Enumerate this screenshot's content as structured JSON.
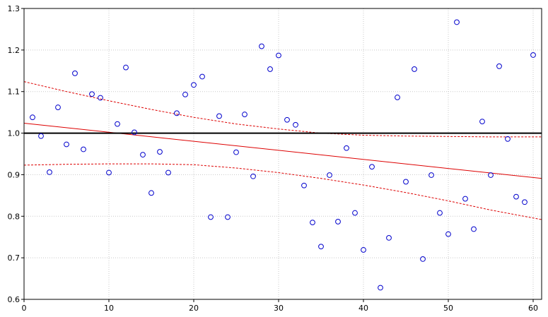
{
  "chart_data": {
    "type": "scatter",
    "title": "",
    "xlabel": "",
    "ylabel": "",
    "xlim": [
      0,
      61
    ],
    "ylim": [
      0.6,
      1.3
    ],
    "x_ticks": [
      0,
      10,
      20,
      30,
      40,
      50,
      60
    ],
    "x_tick_labels": [
      "0",
      "10",
      "20",
      "30",
      "40",
      "50",
      "60"
    ],
    "y_ticks": [
      0.6,
      0.7,
      0.8,
      0.9,
      1.0,
      1.1,
      1.2,
      1.3
    ],
    "y_tick_labels": [
      "0.6",
      "0.7",
      "0.8",
      "0.9",
      "1.0",
      "1.1",
      "1.2",
      "1.3"
    ],
    "grid": true,
    "reference_line_y": 1.0,
    "points": [
      {
        "x": 1,
        "y": 1.038
      },
      {
        "x": 2,
        "y": 0.993
      },
      {
        "x": 3,
        "y": 0.906
      },
      {
        "x": 4,
        "y": 1.062
      },
      {
        "x": 5,
        "y": 0.973
      },
      {
        "x": 6,
        "y": 1.144
      },
      {
        "x": 7,
        "y": 0.961
      },
      {
        "x": 8,
        "y": 1.094
      },
      {
        "x": 9,
        "y": 1.085
      },
      {
        "x": 10,
        "y": 0.905
      },
      {
        "x": 11,
        "y": 1.022
      },
      {
        "x": 12,
        "y": 1.158
      },
      {
        "x": 13,
        "y": 1.002
      },
      {
        "x": 14,
        "y": 0.948
      },
      {
        "x": 15,
        "y": 0.856
      },
      {
        "x": 16,
        "y": 0.955
      },
      {
        "x": 17,
        "y": 0.905
      },
      {
        "x": 18,
        "y": 1.048
      },
      {
        "x": 19,
        "y": 1.093
      },
      {
        "x": 20,
        "y": 1.116
      },
      {
        "x": 21,
        "y": 1.136
      },
      {
        "x": 22,
        "y": 0.798
      },
      {
        "x": 23,
        "y": 1.041
      },
      {
        "x": 24,
        "y": 0.798
      },
      {
        "x": 25,
        "y": 0.954
      },
      {
        "x": 26,
        "y": 1.045
      },
      {
        "x": 27,
        "y": 0.896
      },
      {
        "x": 28,
        "y": 1.209
      },
      {
        "x": 29,
        "y": 1.154
      },
      {
        "x": 30,
        "y": 1.187
      },
      {
        "x": 31,
        "y": 1.032
      },
      {
        "x": 32,
        "y": 1.02
      },
      {
        "x": 33,
        "y": 0.874
      },
      {
        "x": 34,
        "y": 0.785
      },
      {
        "x": 35,
        "y": 0.727
      },
      {
        "x": 36,
        "y": 0.899
      },
      {
        "x": 37,
        "y": 0.787
      },
      {
        "x": 38,
        "y": 0.964
      },
      {
        "x": 39,
        "y": 0.808
      },
      {
        "x": 40,
        "y": 0.719
      },
      {
        "x": 41,
        "y": 0.919
      },
      {
        "x": 42,
        "y": 0.628
      },
      {
        "x": 43,
        "y": 0.748
      },
      {
        "x": 44,
        "y": 1.086
      },
      {
        "x": 45,
        "y": 0.883
      },
      {
        "x": 46,
        "y": 1.154
      },
      {
        "x": 47,
        "y": 0.697
      },
      {
        "x": 48,
        "y": 0.899
      },
      {
        "x": 49,
        "y": 0.808
      },
      {
        "x": 50,
        "y": 0.757
      },
      {
        "x": 51,
        "y": 1.267
      },
      {
        "x": 52,
        "y": 0.842
      },
      {
        "x": 53,
        "y": 0.769
      },
      {
        "x": 54,
        "y": 1.028
      },
      {
        "x": 55,
        "y": 0.899
      },
      {
        "x": 56,
        "y": 1.161
      },
      {
        "x": 57,
        "y": 0.986
      },
      {
        "x": 58,
        "y": 0.847
      },
      {
        "x": 59,
        "y": 0.834
      },
      {
        "x": 60,
        "y": 1.188
      }
    ],
    "regression_line": {
      "x": [
        0,
        61
      ],
      "y": [
        1.024,
        0.891
      ]
    },
    "confidence_upper": {
      "x": [
        0,
        5,
        10,
        15,
        20,
        25,
        30,
        35,
        40,
        45,
        50,
        55,
        61
      ],
      "y": [
        1.124,
        1.1,
        1.078,
        1.057,
        1.038,
        1.022,
        1.01,
        1.0,
        0.995,
        0.993,
        0.992,
        0.991,
        0.991
      ]
    },
    "confidence_lower": {
      "x": [
        0,
        5,
        10,
        15,
        20,
        25,
        30,
        35,
        40,
        45,
        50,
        55,
        61
      ],
      "y": [
        0.923,
        0.925,
        0.926,
        0.926,
        0.924,
        0.916,
        0.905,
        0.891,
        0.875,
        0.857,
        0.837,
        0.815,
        0.792
      ]
    },
    "colors": {
      "points": "#0000cc",
      "regression": "#dd0000",
      "confidence": "#dd0000",
      "reference": "#000000",
      "grid": "#c8c8c8",
      "frame": "#000000"
    }
  }
}
